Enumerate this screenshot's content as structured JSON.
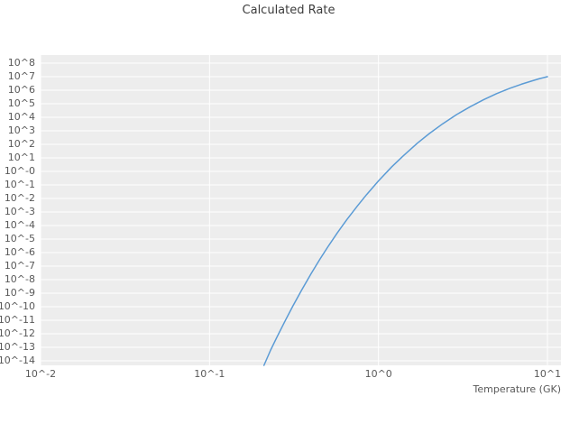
{
  "chart_data": {
    "type": "line",
    "title": "Calculated Rate",
    "xlabel": "Temperature (GK)",
    "ylabel": "",
    "x_scale": "log",
    "y_scale": "log",
    "grid": "white-major-gridlines-on-gray-background",
    "legend": "none",
    "xlim_log10": [
      -2,
      1.08
    ],
    "ylim_log10": [
      -14.33,
      8.6
    ],
    "x_tick_labels": [
      "10^-2",
      "10^-1",
      "10^0",
      "10^1"
    ],
    "x_tick_logs": [
      -2,
      -1,
      0,
      1
    ],
    "y_tick_labels": [
      "10^8",
      "10^7",
      "10^6",
      "10^5",
      "10^4",
      "10^3",
      "10^2",
      "10^1",
      "10^-0",
      "10^-1",
      "10^-2",
      "10^-3",
      "10^-4",
      "10^-5",
      "10^-6",
      "10^-7",
      "10^-8",
      "10^-9",
      "10^-10",
      "10^-11",
      "10^-12",
      "10^-13",
      "10^-14"
    ],
    "y_tick_logs": [
      8,
      7,
      6,
      5,
      4,
      3,
      2,
      1,
      0,
      -1,
      -2,
      -3,
      -4,
      -5,
      -6,
      -7,
      -8,
      -9,
      -10,
      -11,
      -12,
      -13,
      -14
    ],
    "series": [
      {
        "name": "calculated-rate",
        "color": "#5b9bd5",
        "points_T_GK_log10rate": [
          [
            0.21,
            -14.33
          ],
          [
            0.23,
            -13.2
          ],
          [
            0.25,
            -12.27
          ],
          [
            0.28,
            -11.05
          ],
          [
            0.31,
            -9.99
          ],
          [
            0.35,
            -8.79
          ],
          [
            0.4,
            -7.54
          ],
          [
            0.45,
            -6.49
          ],
          [
            0.5,
            -5.6
          ],
          [
            0.57,
            -4.55
          ],
          [
            0.65,
            -3.56
          ],
          [
            0.75,
            -2.55
          ],
          [
            0.85,
            -1.71
          ],
          [
            1.0,
            -0.7
          ],
          [
            1.2,
            0.35
          ],
          [
            1.4,
            1.15
          ],
          [
            1.7,
            2.09
          ],
          [
            2.0,
            2.8
          ],
          [
            2.4,
            3.52
          ],
          [
            2.9,
            4.2
          ],
          [
            3.5,
            4.79
          ],
          [
            4.2,
            5.31
          ],
          [
            5.0,
            5.75
          ],
          [
            6.0,
            6.15
          ],
          [
            7.0,
            6.44
          ],
          [
            8.0,
            6.67
          ],
          [
            9.0,
            6.86
          ],
          [
            10.0,
            7.0
          ]
        ]
      }
    ]
  },
  "style": {
    "plot_background": "#ededed",
    "grid_color": "#ffffff",
    "tick_text_color": "#595959",
    "title_color": "#3d3d3d"
  }
}
